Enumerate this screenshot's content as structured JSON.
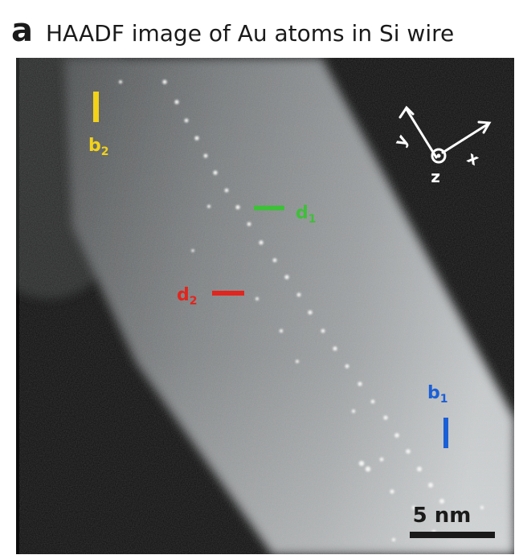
{
  "panel_letter": "a",
  "title": "HAADF image of Au atoms in Si wire",
  "markers": {
    "b1": {
      "main": "b",
      "sub": "1",
      "color": "#1b5fd6"
    },
    "b2": {
      "main": "b",
      "sub": "2",
      "color": "#f2d21a"
    },
    "d1": {
      "main": "d",
      "sub": "1",
      "color": "#3fbf3a"
    },
    "d2": {
      "main": "d",
      "sub": "2",
      "color": "#e0261e"
    }
  },
  "axes": {
    "x": "x",
    "y": "y",
    "z": "z"
  },
  "scale_bar": {
    "label": "5 nm"
  }
}
